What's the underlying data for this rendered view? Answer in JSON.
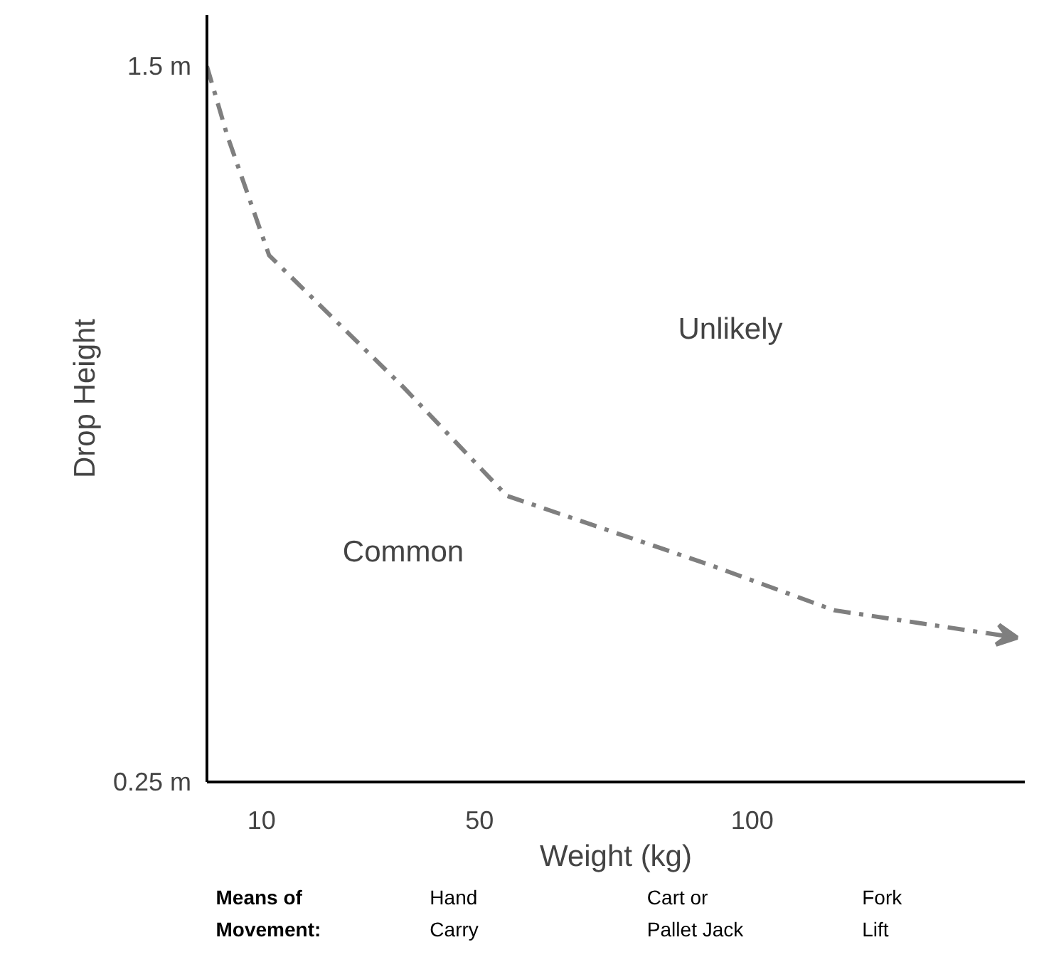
{
  "chart_data": {
    "type": "line",
    "xlabel": "Weight (kg)",
    "ylabel": "Drop Height",
    "x": [
      0,
      3.7,
      11.4,
      36,
      55,
      92,
      115,
      143
    ],
    "series": [
      {
        "color": "#7f7f7f",
        "values": [
          1.5,
          1.38,
          1.17,
          0.94,
          0.75,
          0.63,
          0.55,
          0.51
        ]
      }
    ],
    "line_style": "dashdot",
    "marker": "none",
    "xlim": [
      0,
      150
    ],
    "xticks": [
      10,
      50,
      100
    ],
    "ylim": [
      0.25,
      1.59
    ],
    "yticks": [
      {
        "value": 0.25,
        "label": "0.25 m"
      },
      {
        "value": 1.5,
        "label": "1.5 m"
      }
    ],
    "grid": false,
    "annotations": [
      "Common",
      "Unlikely",
      "Means of\nMovement:",
      "Hand\nCarry",
      "Cart or\nPallet Jack",
      "Fork\nLift"
    ]
  }
}
